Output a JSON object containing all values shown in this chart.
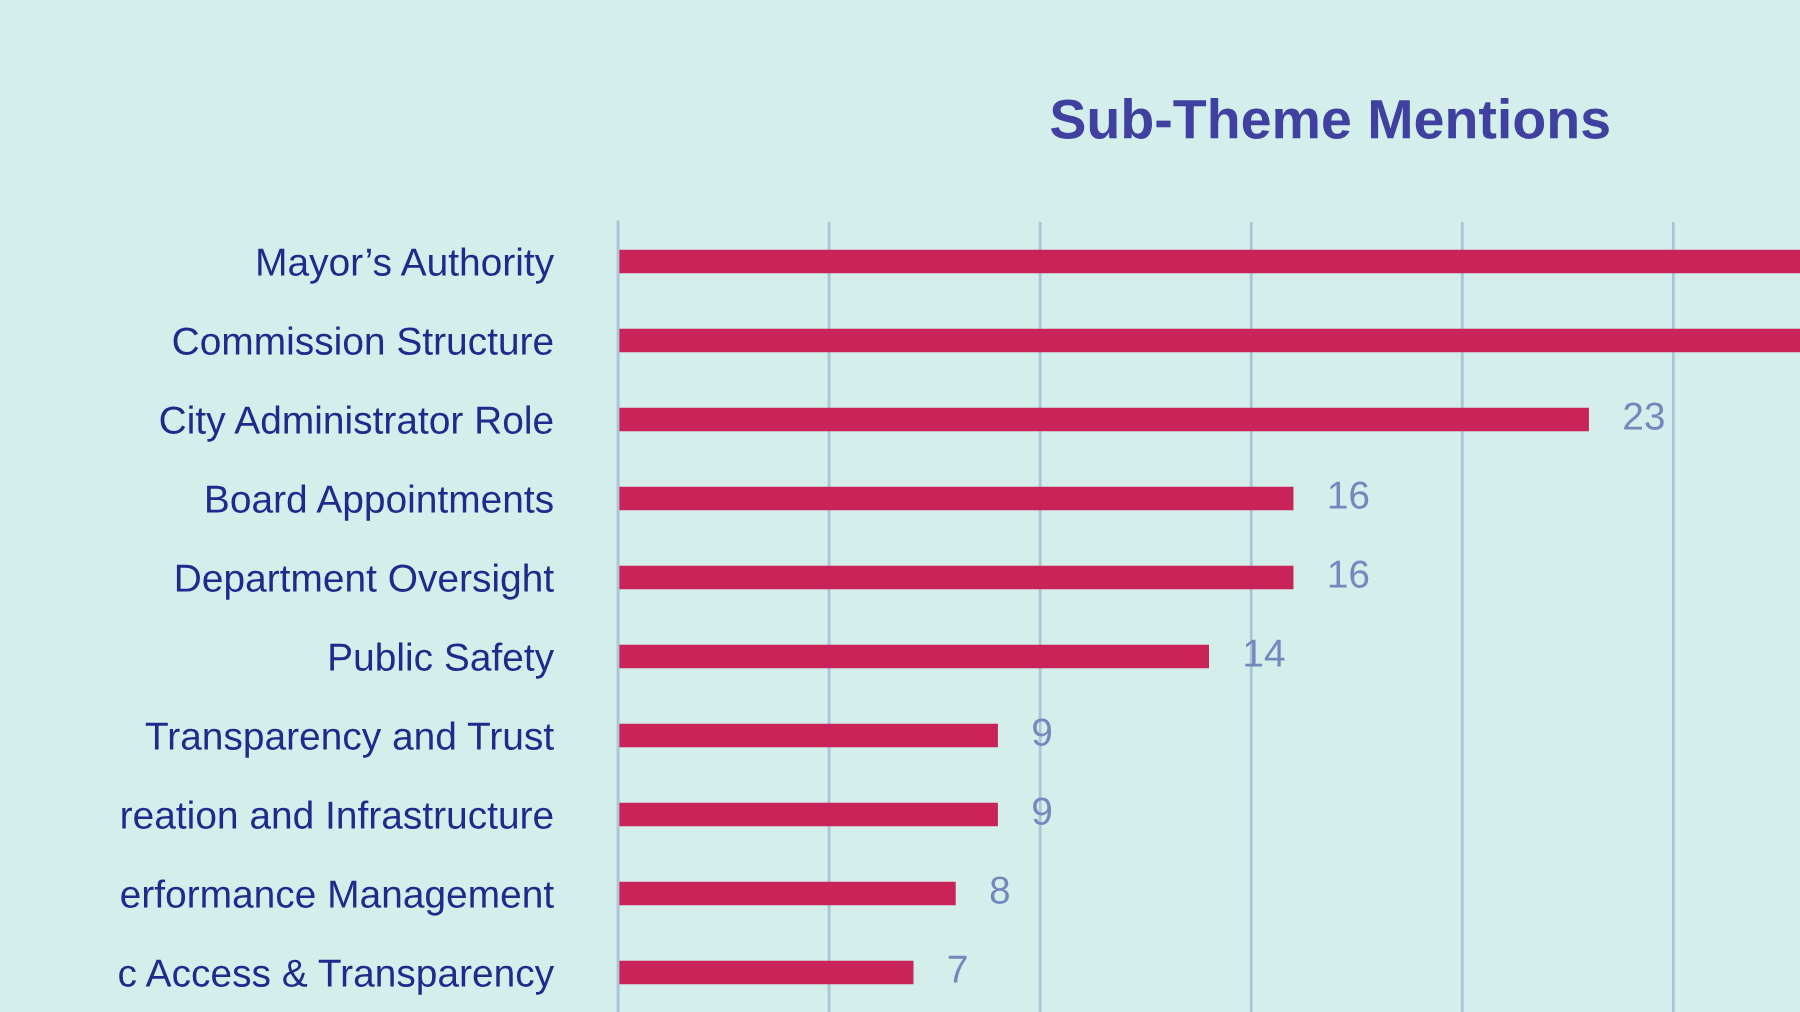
{
  "chart_data": {
    "type": "bar",
    "orientation": "horizontal",
    "title": "Sub-Theme Mentions",
    "categories": [
      "Mayor’s Authority",
      "Commission Structure",
      "City Administrator Role",
      "Board Appointments",
      "Department Oversight",
      "Public Safety",
      "Transparency and Trust",
      "reation and Infrastructure",
      "erformance Management",
      "c Access & Transparency"
    ],
    "values": [
      28,
      28,
      23,
      16,
      16,
      14,
      9,
      9,
      8,
      7
    ],
    "value_labels": [
      null,
      null,
      "23",
      "16",
      "16",
      "14",
      "9",
      "9",
      "8",
      "7"
    ],
    "color": "#c8245a",
    "xlim": [
      0,
      28
    ],
    "xticks": [
      {
        "value": 0,
        "label": null
      },
      {
        "value": 5,
        "label": null
      },
      {
        "value": 10,
        "label": null
      },
      {
        "value": 15,
        "label": null
      },
      {
        "value": 20,
        "label": null
      },
      {
        "value": 25,
        "label": null
      }
    ],
    "grid": "x",
    "tick_labels": "y"
  }
}
